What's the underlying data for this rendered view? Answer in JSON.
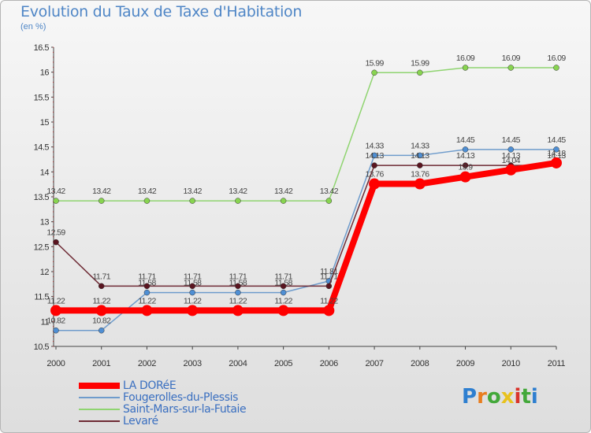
{
  "title": "Evolution du Taux de Taxe d'Habitation",
  "subtitle": "(en %)",
  "logo": {
    "letters": [
      "P",
      "r",
      "o",
      "x",
      "i",
      "t",
      "i"
    ],
    "colors": [
      "#2e7fd0",
      "#e87d1e",
      "#43a83a",
      "#e8c21e",
      "#d9342b",
      "#43a83a",
      "#2e7fd0"
    ]
  },
  "chart_data": {
    "type": "line",
    "x": [
      "2000",
      "2001",
      "2002",
      "2003",
      "2004",
      "2005",
      "2006",
      "2007",
      "2008",
      "2009",
      "2010",
      "2011"
    ],
    "ylim": [
      10.5,
      16.5
    ],
    "yticks": [
      "10.5",
      "11",
      "11.5",
      "12",
      "12.5",
      "13",
      "13.5",
      "14",
      "14.5",
      "15",
      "15.5",
      "16",
      "16.5"
    ],
    "grid": false,
    "legend_position": "bottom-left",
    "series": [
      {
        "name": "Fougerolles-du-Plessis",
        "color": "#6f9ccc",
        "values": [
          10.82,
          10.82,
          11.58,
          11.58,
          11.58,
          11.58,
          11.81,
          14.33,
          14.33,
          14.45,
          14.45,
          14.45
        ],
        "labels": [
          "10.82",
          "10.82",
          "11.58",
          "11.58",
          "11.58",
          "11.58",
          "11.81",
          "14.33",
          "14.33",
          "14.45",
          "14.45",
          "14.45"
        ]
      },
      {
        "name": "Saint-Mars-sur-la-Futaie",
        "color": "#8fd470",
        "values": [
          13.42,
          13.42,
          13.42,
          13.42,
          13.42,
          13.42,
          13.42,
          15.99,
          15.99,
          16.09,
          16.09,
          16.09
        ],
        "labels": [
          "13.42",
          "13.42",
          "13.42",
          "13.42",
          "13.42",
          "13.42",
          "13.42",
          "15.99",
          "15.99",
          "16.09",
          "16.09",
          "16.09"
        ]
      },
      {
        "name": "Levaré",
        "color": "#6e2b35",
        "values": [
          12.59,
          11.71,
          11.71,
          11.71,
          11.71,
          11.71,
          11.71,
          14.13,
          14.13,
          14.13,
          14.13,
          14.13
        ],
        "labels": [
          "12.59",
          "11.71",
          "11.71",
          "11.71",
          "11.71",
          "11.71",
          "11.71",
          "14.13",
          "14.13",
          "14.13",
          "14.13",
          "14.13"
        ]
      },
      {
        "name": "LA DORéE",
        "color": "#ff0000",
        "values": [
          11.22,
          11.22,
          11.22,
          11.22,
          11.22,
          11.22,
          11.22,
          13.76,
          13.76,
          13.9,
          14.04,
          14.18
        ],
        "labels": [
          "11.22",
          "11.22",
          "11.22",
          "11.22",
          "11.22",
          "11.22",
          "11.22",
          "13.76",
          "13.76",
          "13.9",
          "14.04",
          "14.18"
        ]
      }
    ],
    "legend_order": [
      "LA DORéE",
      "Fougerolles-du-Plessis",
      "Saint-Mars-sur-la-Futaie",
      "Levaré"
    ]
  }
}
